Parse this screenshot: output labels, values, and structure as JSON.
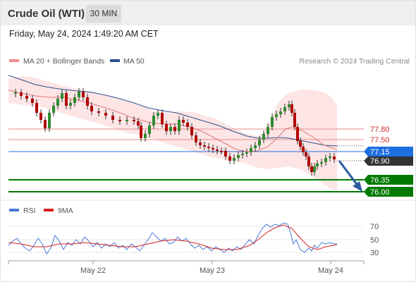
{
  "header": {
    "instrument": "Crude Oil (WTI)",
    "timeframe": "30 MIN"
  },
  "datetime": "Friday, May 24, 2024 1:49:20 AM CET",
  "legend": {
    "ma20": "MA 20 + Bollinger Bands",
    "ma50": "MA 50",
    "credit": "Research © 2024 Trading Central",
    "ma20_color": "#f28b8b",
    "ma50_color": "#2f4f8f"
  },
  "price_levels": [
    {
      "value": "77.80",
      "kind": "resistance"
    },
    {
      "value": "77.50",
      "kind": "resistance"
    },
    {
      "value": "77.15",
      "kind": "pivot"
    },
    {
      "value": "76.90",
      "kind": "last"
    },
    {
      "value": "76.35",
      "kind": "support"
    },
    {
      "value": "76.00",
      "kind": "support"
    }
  ],
  "rsi_panel": {
    "rsi_label": "RSI",
    "ma_label": "9MA",
    "rsi_color": "#4a78d6",
    "ma_color": "#d62020",
    "levels": [
      "70",
      "50",
      "30"
    ]
  },
  "x_axis": [
    "May 22",
    "May 23",
    "May 24"
  ],
  "colors": {
    "up": "#2e8b2e",
    "down": "#b30000",
    "pivot": "#1e6fe0",
    "support": "#007a00",
    "last": "#333333"
  }
}
